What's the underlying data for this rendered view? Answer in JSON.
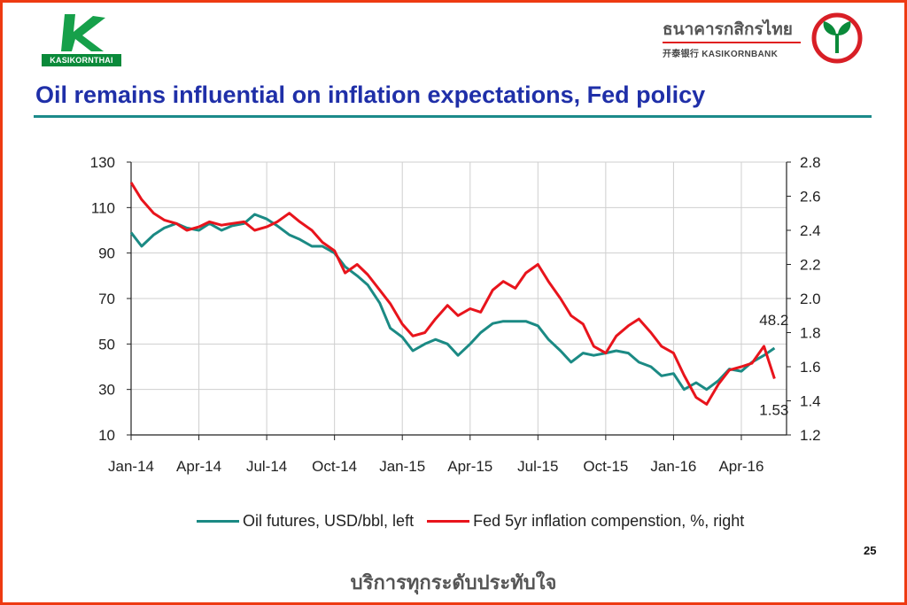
{
  "header": {
    "left_logo_text": "KASIKORNTHAI",
    "bank_name_thai": "ธนาคารกสิกรไทย",
    "bank_name_en": "开泰银行 KASIKORNBANK"
  },
  "slide": {
    "title": "Oil remains influential on inflation expectations, Fed policy",
    "page_number": "25",
    "footer_text": "บริการทุกระดับประทับใจ"
  },
  "colors": {
    "title": "#1f2fa8",
    "frame": "#ee3a12",
    "oil": "#1b8a84",
    "inflation": "#e8141c"
  },
  "chart_data": {
    "type": "line",
    "x_tick_labels": [
      "Jan-14",
      "Apr-14",
      "Jul-14",
      "Oct-14",
      "Jan-15",
      "Apr-15",
      "Jul-15",
      "Oct-15",
      "Jan-16",
      "Apr-16"
    ],
    "x_range": [
      "2014-01",
      "2016-06"
    ],
    "y_left": {
      "range": [
        10,
        130
      ],
      "ticks": [
        "130",
        "110",
        "90",
        "70",
        "50",
        "30",
        "10"
      ]
    },
    "y_right": {
      "range": [
        1.2,
        2.8
      ],
      "ticks": [
        "2.8",
        "2.6",
        "2.4",
        "2.2",
        "2.0",
        "1.8",
        "1.6",
        "1.4",
        "1.2"
      ]
    },
    "grid": true,
    "legend_position": "bottom",
    "series": [
      {
        "name": "Oil futures, USD/bbl, left",
        "axis": "left",
        "end_label": "48.2",
        "points": [
          [
            "2014-01-01",
            99
          ],
          [
            "2014-01-15",
            93
          ],
          [
            "2014-02-01",
            98
          ],
          [
            "2014-02-15",
            101
          ],
          [
            "2014-03-01",
            103
          ],
          [
            "2014-03-15",
            101
          ],
          [
            "2014-04-01",
            100
          ],
          [
            "2014-04-15",
            103
          ],
          [
            "2014-05-01",
            100
          ],
          [
            "2014-05-15",
            102
          ],
          [
            "2014-06-01",
            103
          ],
          [
            "2014-06-15",
            107
          ],
          [
            "2014-07-01",
            105
          ],
          [
            "2014-07-15",
            102
          ],
          [
            "2014-08-01",
            98
          ],
          [
            "2014-08-15",
            96
          ],
          [
            "2014-09-01",
            93
          ],
          [
            "2014-09-15",
            93
          ],
          [
            "2014-10-01",
            90
          ],
          [
            "2014-10-15",
            84
          ],
          [
            "2014-11-01",
            80
          ],
          [
            "2014-11-15",
            76
          ],
          [
            "2014-12-01",
            68
          ],
          [
            "2014-12-15",
            57
          ],
          [
            "2015-01-01",
            53
          ],
          [
            "2015-01-15",
            47
          ],
          [
            "2015-02-01",
            50
          ],
          [
            "2015-02-15",
            52
          ],
          [
            "2015-03-01",
            50
          ],
          [
            "2015-03-15",
            45
          ],
          [
            "2015-04-01",
            50
          ],
          [
            "2015-04-15",
            55
          ],
          [
            "2015-05-01",
            59
          ],
          [
            "2015-05-15",
            60
          ],
          [
            "2015-06-01",
            60
          ],
          [
            "2015-06-15",
            60
          ],
          [
            "2015-07-01",
            58
          ],
          [
            "2015-07-15",
            52
          ],
          [
            "2015-08-01",
            47
          ],
          [
            "2015-08-15",
            42
          ],
          [
            "2015-09-01",
            46
          ],
          [
            "2015-09-15",
            45
          ],
          [
            "2015-10-01",
            46
          ],
          [
            "2015-10-15",
            47
          ],
          [
            "2015-11-01",
            46
          ],
          [
            "2015-11-15",
            42
          ],
          [
            "2015-12-01",
            40
          ],
          [
            "2015-12-15",
            36
          ],
          [
            "2016-01-01",
            37
          ],
          [
            "2016-01-15",
            30
          ],
          [
            "2016-02-01",
            33
          ],
          [
            "2016-02-15",
            30
          ],
          [
            "2016-03-01",
            34
          ],
          [
            "2016-03-15",
            39
          ],
          [
            "2016-04-01",
            38
          ],
          [
            "2016-04-15",
            42
          ],
          [
            "2016-05-01",
            45
          ],
          [
            "2016-05-15",
            48.2
          ]
        ]
      },
      {
        "name": "Fed 5yr inflation compenstion, %, right",
        "axis": "right",
        "end_label": "1.53",
        "points": [
          [
            "2014-01-01",
            2.68
          ],
          [
            "2014-01-15",
            2.58
          ],
          [
            "2014-02-01",
            2.5
          ],
          [
            "2014-02-15",
            2.46
          ],
          [
            "2014-03-01",
            2.44
          ],
          [
            "2014-03-15",
            2.4
          ],
          [
            "2014-04-01",
            2.42
          ],
          [
            "2014-04-15",
            2.45
          ],
          [
            "2014-05-01",
            2.43
          ],
          [
            "2014-05-15",
            2.44
          ],
          [
            "2014-06-01",
            2.45
          ],
          [
            "2014-06-15",
            2.4
          ],
          [
            "2014-07-01",
            2.42
          ],
          [
            "2014-07-15",
            2.45
          ],
          [
            "2014-08-01",
            2.5
          ],
          [
            "2014-08-15",
            2.45
          ],
          [
            "2014-09-01",
            2.4
          ],
          [
            "2014-09-15",
            2.33
          ],
          [
            "2014-10-01",
            2.28
          ],
          [
            "2014-10-15",
            2.15
          ],
          [
            "2014-11-01",
            2.2
          ],
          [
            "2014-11-15",
            2.14
          ],
          [
            "2014-12-01",
            2.05
          ],
          [
            "2014-12-15",
            1.97
          ],
          [
            "2015-01-01",
            1.85
          ],
          [
            "2015-01-15",
            1.78
          ],
          [
            "2015-02-01",
            1.8
          ],
          [
            "2015-02-15",
            1.88
          ],
          [
            "2015-03-01",
            1.96
          ],
          [
            "2015-03-15",
            1.9
          ],
          [
            "2015-04-01",
            1.94
          ],
          [
            "2015-04-15",
            1.92
          ],
          [
            "2015-05-01",
            2.05
          ],
          [
            "2015-05-15",
            2.1
          ],
          [
            "2015-06-01",
            2.06
          ],
          [
            "2015-06-15",
            2.15
          ],
          [
            "2015-07-01",
            2.2
          ],
          [
            "2015-07-15",
            2.1
          ],
          [
            "2015-08-01",
            2.0
          ],
          [
            "2015-08-15",
            1.9
          ],
          [
            "2015-09-01",
            1.85
          ],
          [
            "2015-09-15",
            1.72
          ],
          [
            "2015-10-01",
            1.68
          ],
          [
            "2015-10-15",
            1.78
          ],
          [
            "2015-11-01",
            1.84
          ],
          [
            "2015-11-15",
            1.88
          ],
          [
            "2015-12-01",
            1.8
          ],
          [
            "2015-12-15",
            1.72
          ],
          [
            "2016-01-01",
            1.68
          ],
          [
            "2016-01-15",
            1.55
          ],
          [
            "2016-02-01",
            1.42
          ],
          [
            "2016-02-15",
            1.38
          ],
          [
            "2016-03-01",
            1.5
          ],
          [
            "2016-03-15",
            1.58
          ],
          [
            "2016-04-01",
            1.6
          ],
          [
            "2016-04-15",
            1.62
          ],
          [
            "2016-05-01",
            1.72
          ],
          [
            "2016-05-15",
            1.53
          ]
        ]
      }
    ]
  }
}
